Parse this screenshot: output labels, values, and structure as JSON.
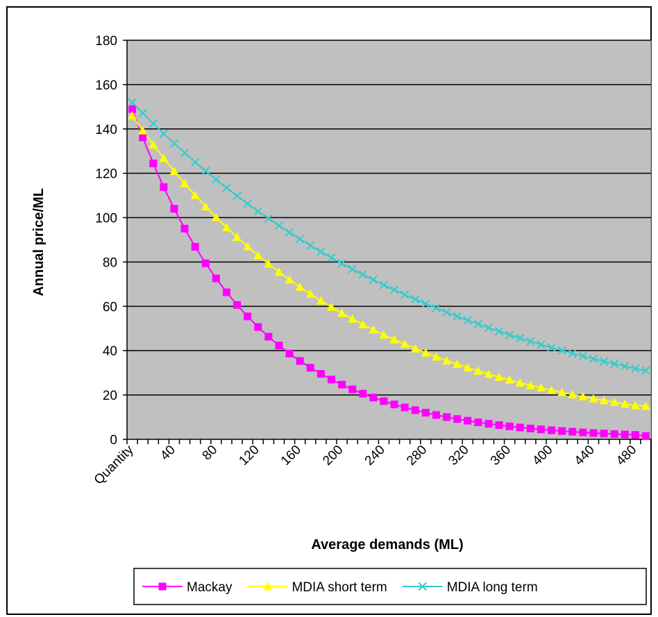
{
  "chart_data": {
    "type": "line",
    "title": "",
    "xlabel": "Average demands (ML)",
    "ylabel": "Annual price/ML",
    "first_category_label": "Quantity",
    "xlim": [
      0,
      500
    ],
    "ylim": [
      0,
      180
    ],
    "y_ticks": [
      0,
      20,
      40,
      60,
      80,
      100,
      120,
      140,
      160,
      180
    ],
    "x_ticks": [
      40,
      80,
      120,
      160,
      200,
      240,
      280,
      320,
      360,
      400,
      440,
      480
    ],
    "x_step": 10,
    "grid": "horizontal",
    "plot_background": "#c0c0c0",
    "legend_position": "bottom",
    "series": [
      {
        "name": "Mackay",
        "color": "#ff00ff",
        "marker": "square",
        "x_start": 5,
        "y_start": 149,
        "decay_per_step": 0.914,
        "y_end": 1.5
      },
      {
        "name": "MDIA short term",
        "color": "#ffff00",
        "marker": "triangle",
        "x_start": 5,
        "y_start": 146,
        "decay_per_step": 0.954,
        "y_end": 15
      },
      {
        "name": "MDIA long term",
        "color": "#33cccc",
        "marker": "x",
        "x_start": 5,
        "y_start": 152,
        "decay_per_step": 0.968,
        "y_end": 31
      }
    ]
  }
}
